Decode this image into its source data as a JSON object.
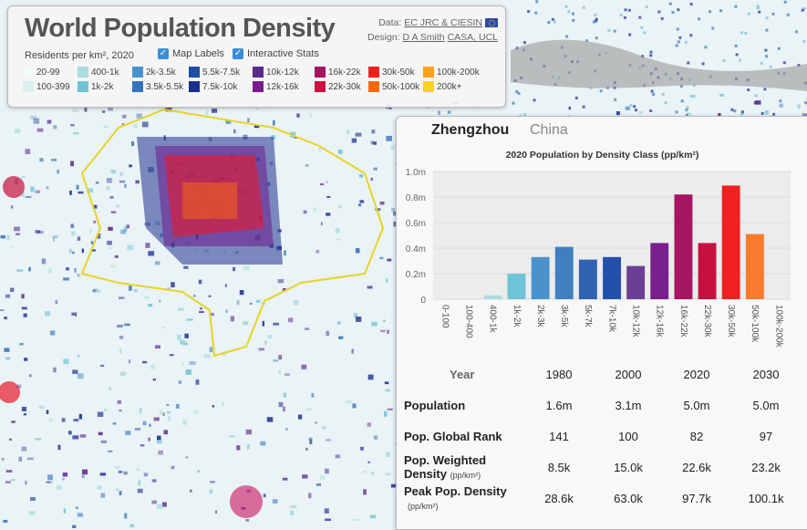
{
  "header": {
    "title": "World Population Density",
    "data_prefix": "Data:",
    "data_source": "EC JRC & CIESIN",
    "design_prefix": "Design:",
    "design_author": "D A Smith",
    "design_org": "CASA, UCL",
    "units": "Residents per km², 2020",
    "map_labels": "Map Labels",
    "interactive_stats": "Interactive Stats"
  },
  "legend": [
    {
      "label": "20-99",
      "color": "#f2fbf8"
    },
    {
      "label": "100-399",
      "color": "#d9f0ec"
    },
    {
      "label": "400-1k",
      "color": "#a9dde0"
    },
    {
      "label": "1k-2k",
      "color": "#6fc3d6"
    },
    {
      "label": "2k-3.5k",
      "color": "#4a92cc"
    },
    {
      "label": "3.5k-5.5k",
      "color": "#3673bb"
    },
    {
      "label": "5.5k-7.5k",
      "color": "#1d4fa4"
    },
    {
      "label": "7.5k-10k",
      "color": "#1a2f90"
    },
    {
      "label": "10k-12k",
      "color": "#5b2a8a"
    },
    {
      "label": "12k-16k",
      "color": "#7a1890"
    },
    {
      "label": "16k-22k",
      "color": "#a51560"
    },
    {
      "label": "22k-30k",
      "color": "#cf1040"
    },
    {
      "label": "30k-50k",
      "color": "#f02020"
    },
    {
      "label": "50k-100k",
      "color": "#f86a10"
    },
    {
      "label": "100k-200k",
      "color": "#f9a318"
    },
    {
      "label": "200k+",
      "color": "#fbd11a"
    }
  ],
  "city": {
    "name": "Zhengzhou",
    "country": "China"
  },
  "chart_data": {
    "type": "bar",
    "title": "2020 Population by Density Class (pp/km²)",
    "categories": [
      "0-100",
      "100-400",
      "400-1k",
      "1k-2k",
      "2k-3k",
      "3k-5k",
      "5k-7k",
      "7k-10k",
      "10k-12k",
      "12k-16k",
      "16k-22k",
      "22k-30k",
      "30k-50k",
      "50k-100k",
      "100k-200k"
    ],
    "values": [
      0,
      0,
      0.03,
      0.2,
      0.33,
      0.41,
      0.31,
      0.33,
      0.26,
      0.44,
      0.82,
      0.44,
      0.89,
      0.51,
      0
    ],
    "colors": [
      "#e8f5f2",
      "#d9f0ec",
      "#a9dde0",
      "#6fc3d6",
      "#4a92cc",
      "#3f7fc0",
      "#2f63b0",
      "#2450ac",
      "#6b3f94",
      "#7a1f8e",
      "#a51560",
      "#c8103e",
      "#f02020",
      "#f87a2a",
      "#f9a318"
    ],
    "ylim": [
      0,
      1.0
    ],
    "yticks": [
      "0",
      "0.2m",
      "0.4m",
      "0.6m",
      "0.8m",
      "1.0m"
    ]
  },
  "stats": {
    "year_label": "Year",
    "years": [
      "1980",
      "2000",
      "2020",
      "2030"
    ],
    "rows": [
      {
        "label": "Population",
        "sub": "",
        "values": [
          "1.6m",
          "3.1m",
          "5.0m",
          "5.0m"
        ]
      },
      {
        "label": "Pop. Global Rank",
        "sub": "",
        "values": [
          "141",
          "100",
          "82",
          "97"
        ]
      },
      {
        "label": "Pop. Weighted",
        "label2": "Density",
        "sub": "(pp/km²)",
        "values": [
          "8.5k",
          "15.0k",
          "22.6k",
          "23.2k"
        ]
      },
      {
        "label": "Peak Pop. Density",
        "label2": "",
        "sub": "(pp/km²)",
        "values": [
          "28.6k",
          "63.0k",
          "97.7k",
          "100.1k"
        ]
      }
    ]
  }
}
